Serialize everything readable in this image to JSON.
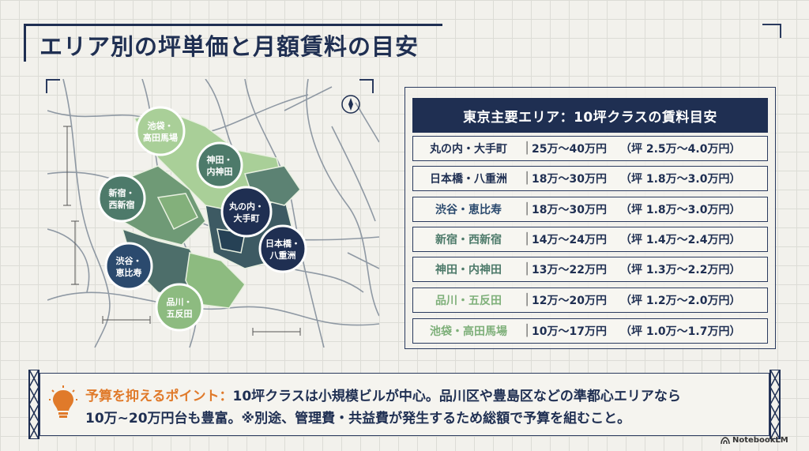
{
  "title": "エリア別の坪単価と月額賃料の目安",
  "table": {
    "header": "東京主要エリア：10坪クラスの賃料目安",
    "rows": [
      {
        "area": "丸の内・大手町",
        "range": "25万〜40万円",
        "unit": "（坪 2.5万〜4.0万円）",
        "color": "#1f2f52"
      },
      {
        "area": "日本橋・八重洲",
        "range": "18万〜30万円",
        "unit": "（坪 1.8万〜3.0万円）",
        "color": "#1f2f52"
      },
      {
        "area": "渋谷・恵比寿",
        "range": "18万〜30万円",
        "unit": "（坪 1.8万〜3.0万円）",
        "color": "#2b4a6e"
      },
      {
        "area": "新宿・西新宿",
        "range": "14万〜24万円",
        "unit": "（坪 1.4万〜2.4万円）",
        "color": "#4d7a6a"
      },
      {
        "area": "神田・内神田",
        "range": "13万〜22万円",
        "unit": "（坪 1.3万〜2.2万円）",
        "color": "#4d7a6a"
      },
      {
        "area": "品川・五反田",
        "range": "12万〜20万円",
        "unit": "（坪 1.2万〜2.0万円）",
        "color": "#7fb07a"
      },
      {
        "area": "池袋・高田馬場",
        "range": "10万〜17万円",
        "unit": "（坪 1.0万〜1.7万円）",
        "color": "#7fb07a"
      }
    ]
  },
  "map": {
    "badges": [
      {
        "line1": "池袋・",
        "line2": "高田馬場"
      },
      {
        "line1": "神田・",
        "line2": "内神田"
      },
      {
        "line1": "新宿・",
        "line2": "西新宿"
      },
      {
        "line1": "丸の内・",
        "line2": "大手町"
      },
      {
        "line1": "日本橋・",
        "line2": "八重洲"
      },
      {
        "line1": "渋谷・",
        "line2": "恵比寿"
      },
      {
        "line1": "品川・",
        "line2": "五反田"
      }
    ],
    "compass_icon": "compass-icon"
  },
  "note": {
    "label": "予算を抑えるポイント：",
    "text1": "10坪クラスは小規模ビルが中心。品川区や豊島区などの準都心エリアなら",
    "text2": "10万~20万円台も豊富。※別途、管理費・共益費が発生するため総額で予算を組むこと。",
    "icon": "lightbulb-icon"
  },
  "logo": "NotebookLM",
  "colors": {
    "navy": "#1f2f52",
    "accent": "#e07a2a",
    "green_light": "#a9cf98",
    "green_mid": "#6f9a76",
    "teal_dark": "#3d5a63"
  }
}
